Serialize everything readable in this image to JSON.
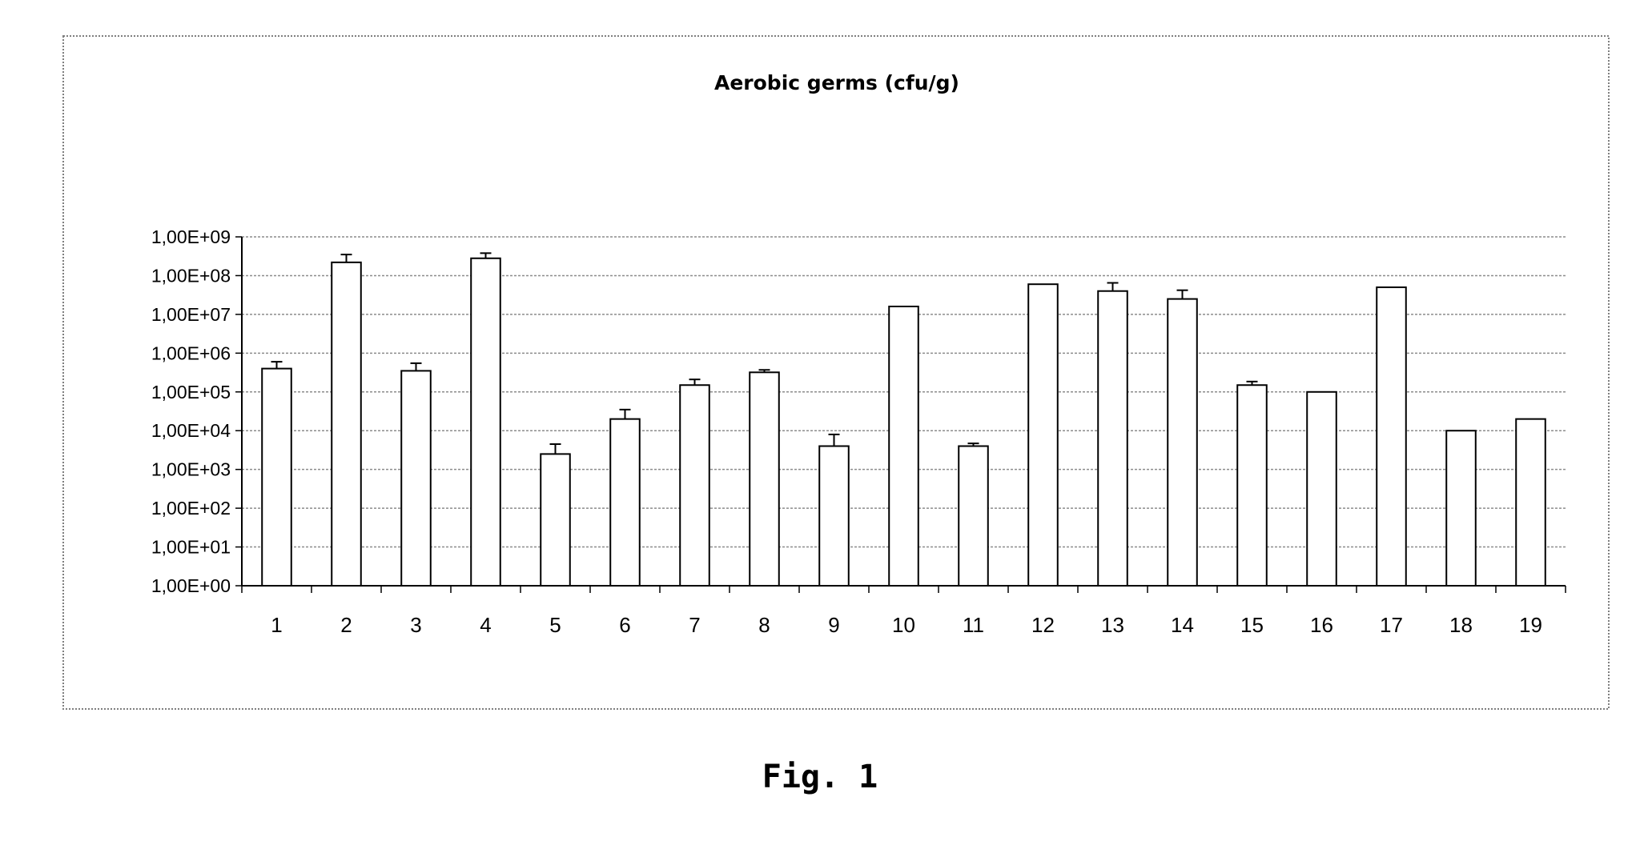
{
  "figure": {
    "caption": "Fig. 1"
  },
  "chart_data": {
    "type": "bar",
    "title": "Aerobic germs (cfu/g)",
    "xlabel": "",
    "ylabel": "",
    "y_scale": "log",
    "ylim": [
      1,
      1000000000
    ],
    "y_ticks": [
      "1,00E+00",
      "1,00E+01",
      "1,00E+02",
      "1,00E+03",
      "1,00E+04",
      "1,00E+05",
      "1,00E+06",
      "1,00E+07",
      "1,00E+08",
      "1,00E+09"
    ],
    "grid": true,
    "legend": "none",
    "categories": [
      "1",
      "2",
      "3",
      "4",
      "5",
      "6",
      "7",
      "8",
      "9",
      "10",
      "11",
      "12",
      "13",
      "14",
      "15",
      "16",
      "17",
      "18",
      "19"
    ],
    "values": [
      400000,
      220000000,
      350000,
      280000000,
      2500,
      20000,
      150000,
      320000,
      4000,
      16000000,
      4000,
      60000000,
      40000000,
      25000000,
      150000,
      100000,
      50000000,
      10000,
      20000
    ],
    "error_upper": [
      600000,
      350000000,
      550000,
      380000000,
      4500,
      35000,
      210000,
      370000,
      8000,
      null,
      4700,
      null,
      65000000,
      42000000,
      185000,
      null,
      null,
      null,
      null
    ]
  }
}
